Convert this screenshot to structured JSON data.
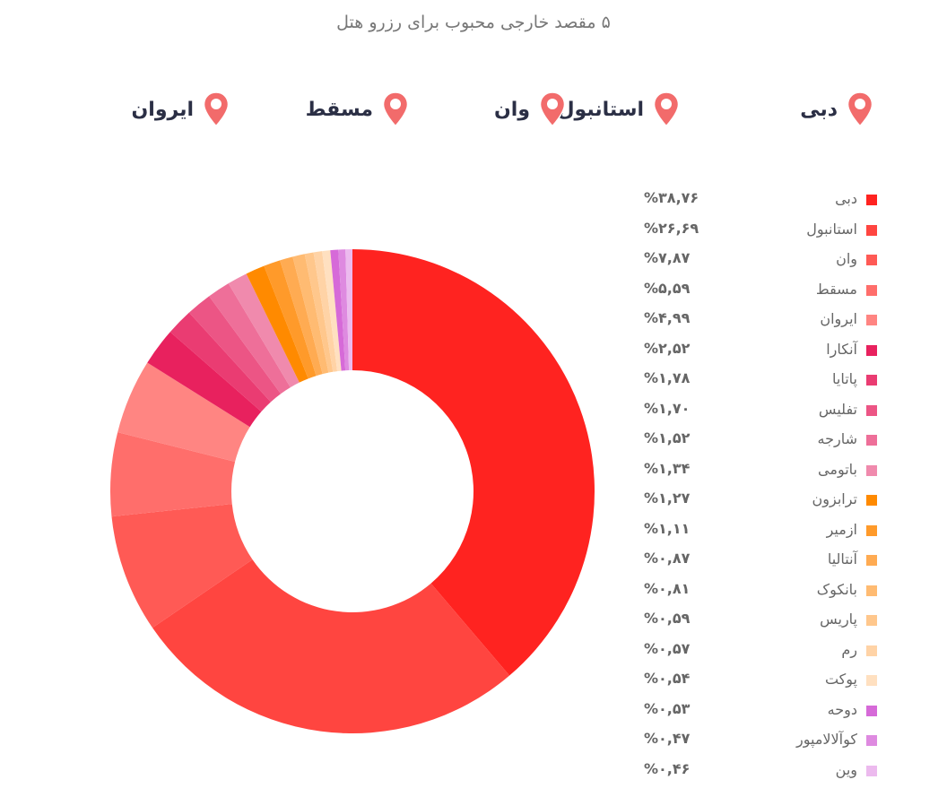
{
  "chart_data": {
    "type": "pie",
    "style": "donut",
    "title": "۵ مقصد خارجی محبوب برای رزرو هتل",
    "legend_position": "right",
    "top_destinations": [
      "دبی",
      "استانبول",
      "وان",
      "مسقط",
      "ایروان"
    ],
    "slices": [
      {
        "label": "دبی",
        "value": 38.76,
        "value_text": "%۳۸,۷۶",
        "color": "#ff2320"
      },
      {
        "label": "استانبول",
        "value": 26.69,
        "value_text": "%۲۶,۶۹",
        "color": "#ff4540"
      },
      {
        "label": "وان",
        "value": 7.87,
        "value_text": "%۷,۸۷",
        "color": "#ff5a55"
      },
      {
        "label": "مسقط",
        "value": 5.59,
        "value_text": "%۵,۵۹",
        "color": "#ff6e6b"
      },
      {
        "label": "ایروان",
        "value": 4.99,
        "value_text": "%۴,۹۹",
        "color": "#ff8582"
      },
      {
        "label": "آنکارا",
        "value": 2.52,
        "value_text": "%۲,۵۲",
        "color": "#e8215e"
      },
      {
        "label": "پاتایا",
        "value": 1.78,
        "value_text": "%۱,۷۸",
        "color": "#ea3c72"
      },
      {
        "label": "تفلیس",
        "value": 1.7,
        "value_text": "%۱,۷۰",
        "color": "#ec5585"
      },
      {
        "label": "شارجه",
        "value": 1.52,
        "value_text": "%۱,۵۲",
        "color": "#ee6f99"
      },
      {
        "label": "باتومی",
        "value": 1.34,
        "value_text": "%۱,۳۴",
        "color": "#f08aad"
      },
      {
        "label": "ترابزون",
        "value": 1.27,
        "value_text": "%۱,۲۷",
        "color": "#ff8a00"
      },
      {
        "label": "ازمیر",
        "value": 1.11,
        "value_text": "%۱,۱۱",
        "color": "#ff9a2a"
      },
      {
        "label": "آنتالیا",
        "value": 0.87,
        "value_text": "%۰,۸۷",
        "color": "#ffab52"
      },
      {
        "label": "بانکوک",
        "value": 0.81,
        "value_text": "%۰,۸۱",
        "color": "#ffbb72"
      },
      {
        "label": "پاریس",
        "value": 0.59,
        "value_text": "%۰,۵۹",
        "color": "#ffc78c"
      },
      {
        "label": "رم",
        "value": 0.57,
        "value_text": "%۰,۵۷",
        "color": "#ffd3a6"
      },
      {
        "label": "پوکت",
        "value": 0.54,
        "value_text": "%۰,۵۴",
        "color": "#ffe0c0"
      },
      {
        "label": "دوحه",
        "value": 0.53,
        "value_text": "%۰,۵۳",
        "color": "#d66ad8"
      },
      {
        "label": "کوآلالامپور",
        "value": 0.47,
        "value_text": "%۰,۴۷",
        "color": "#de8ae0"
      },
      {
        "label": "وین",
        "value": 0.46,
        "value_text": "%۰,۴۶",
        "color": "#ecbaee"
      }
    ]
  },
  "colors": {
    "pin": "#f26b6b",
    "title_text": "#777777",
    "destination_text": "#2b2f45",
    "legend_text": "#666666"
  },
  "icons": {
    "pin": "map-pin-icon"
  }
}
